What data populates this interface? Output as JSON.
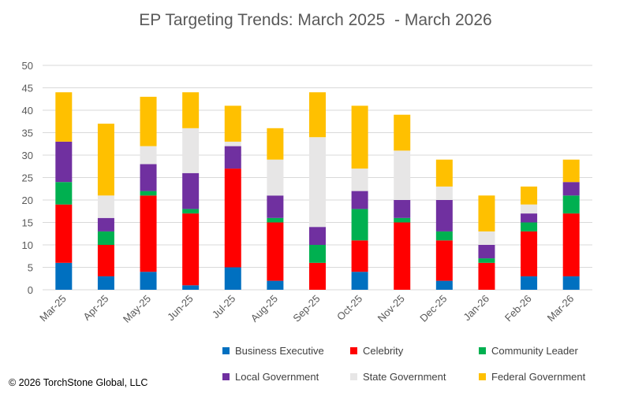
{
  "chart_data": {
    "type": "bar",
    "stacked": true,
    "title": "EP Targeting Trends: March 2025  - March 2026",
    "xlabel": "",
    "ylabel": "",
    "ylim": [
      0,
      50
    ],
    "yticks": [
      0,
      5,
      10,
      15,
      20,
      25,
      30,
      35,
      40,
      45,
      50
    ],
    "grid": true,
    "legend_position": "bottom",
    "categories": [
      "Mar-25",
      "Apr-25",
      "May-25",
      "Jun-25",
      "Jul-25",
      "Aug-25",
      "Sep-25",
      "Oct-25",
      "Nov-25",
      "Dec-25",
      "Jan-26",
      "Feb-26",
      "Mar-26"
    ],
    "series": [
      {
        "name": "Business Executive",
        "color": "#0070C0",
        "values": [
          6,
          3,
          4,
          1,
          5,
          2,
          0,
          4,
          0,
          2,
          0,
          3,
          3
        ]
      },
      {
        "name": "Celebrity",
        "color": "#FF0000",
        "values": [
          13,
          7,
          17,
          16,
          22,
          13,
          6,
          7,
          15,
          9,
          6,
          10,
          14
        ]
      },
      {
        "name": "Community Leader",
        "color": "#00B050",
        "values": [
          5,
          3,
          1,
          1,
          0,
          1,
          4,
          7,
          1,
          2,
          1,
          2,
          4
        ]
      },
      {
        "name": "Local Government",
        "color": "#7030A0",
        "values": [
          9,
          3,
          6,
          8,
          5,
          5,
          4,
          4,
          4,
          7,
          3,
          2,
          3
        ]
      },
      {
        "name": "State Government",
        "color": "#E7E6E6",
        "values": [
          0,
          5,
          4,
          10,
          1,
          8,
          20,
          5,
          11,
          3,
          3,
          2,
          0
        ]
      },
      {
        "name": "Federal Government",
        "color": "#FFC000",
        "values": [
          11,
          16,
          11,
          8,
          8,
          7,
          10,
          14,
          8,
          6,
          8,
          4,
          5
        ]
      }
    ]
  },
  "footer": {
    "copyright": "© 2026 TorchStone Global, LLC"
  }
}
